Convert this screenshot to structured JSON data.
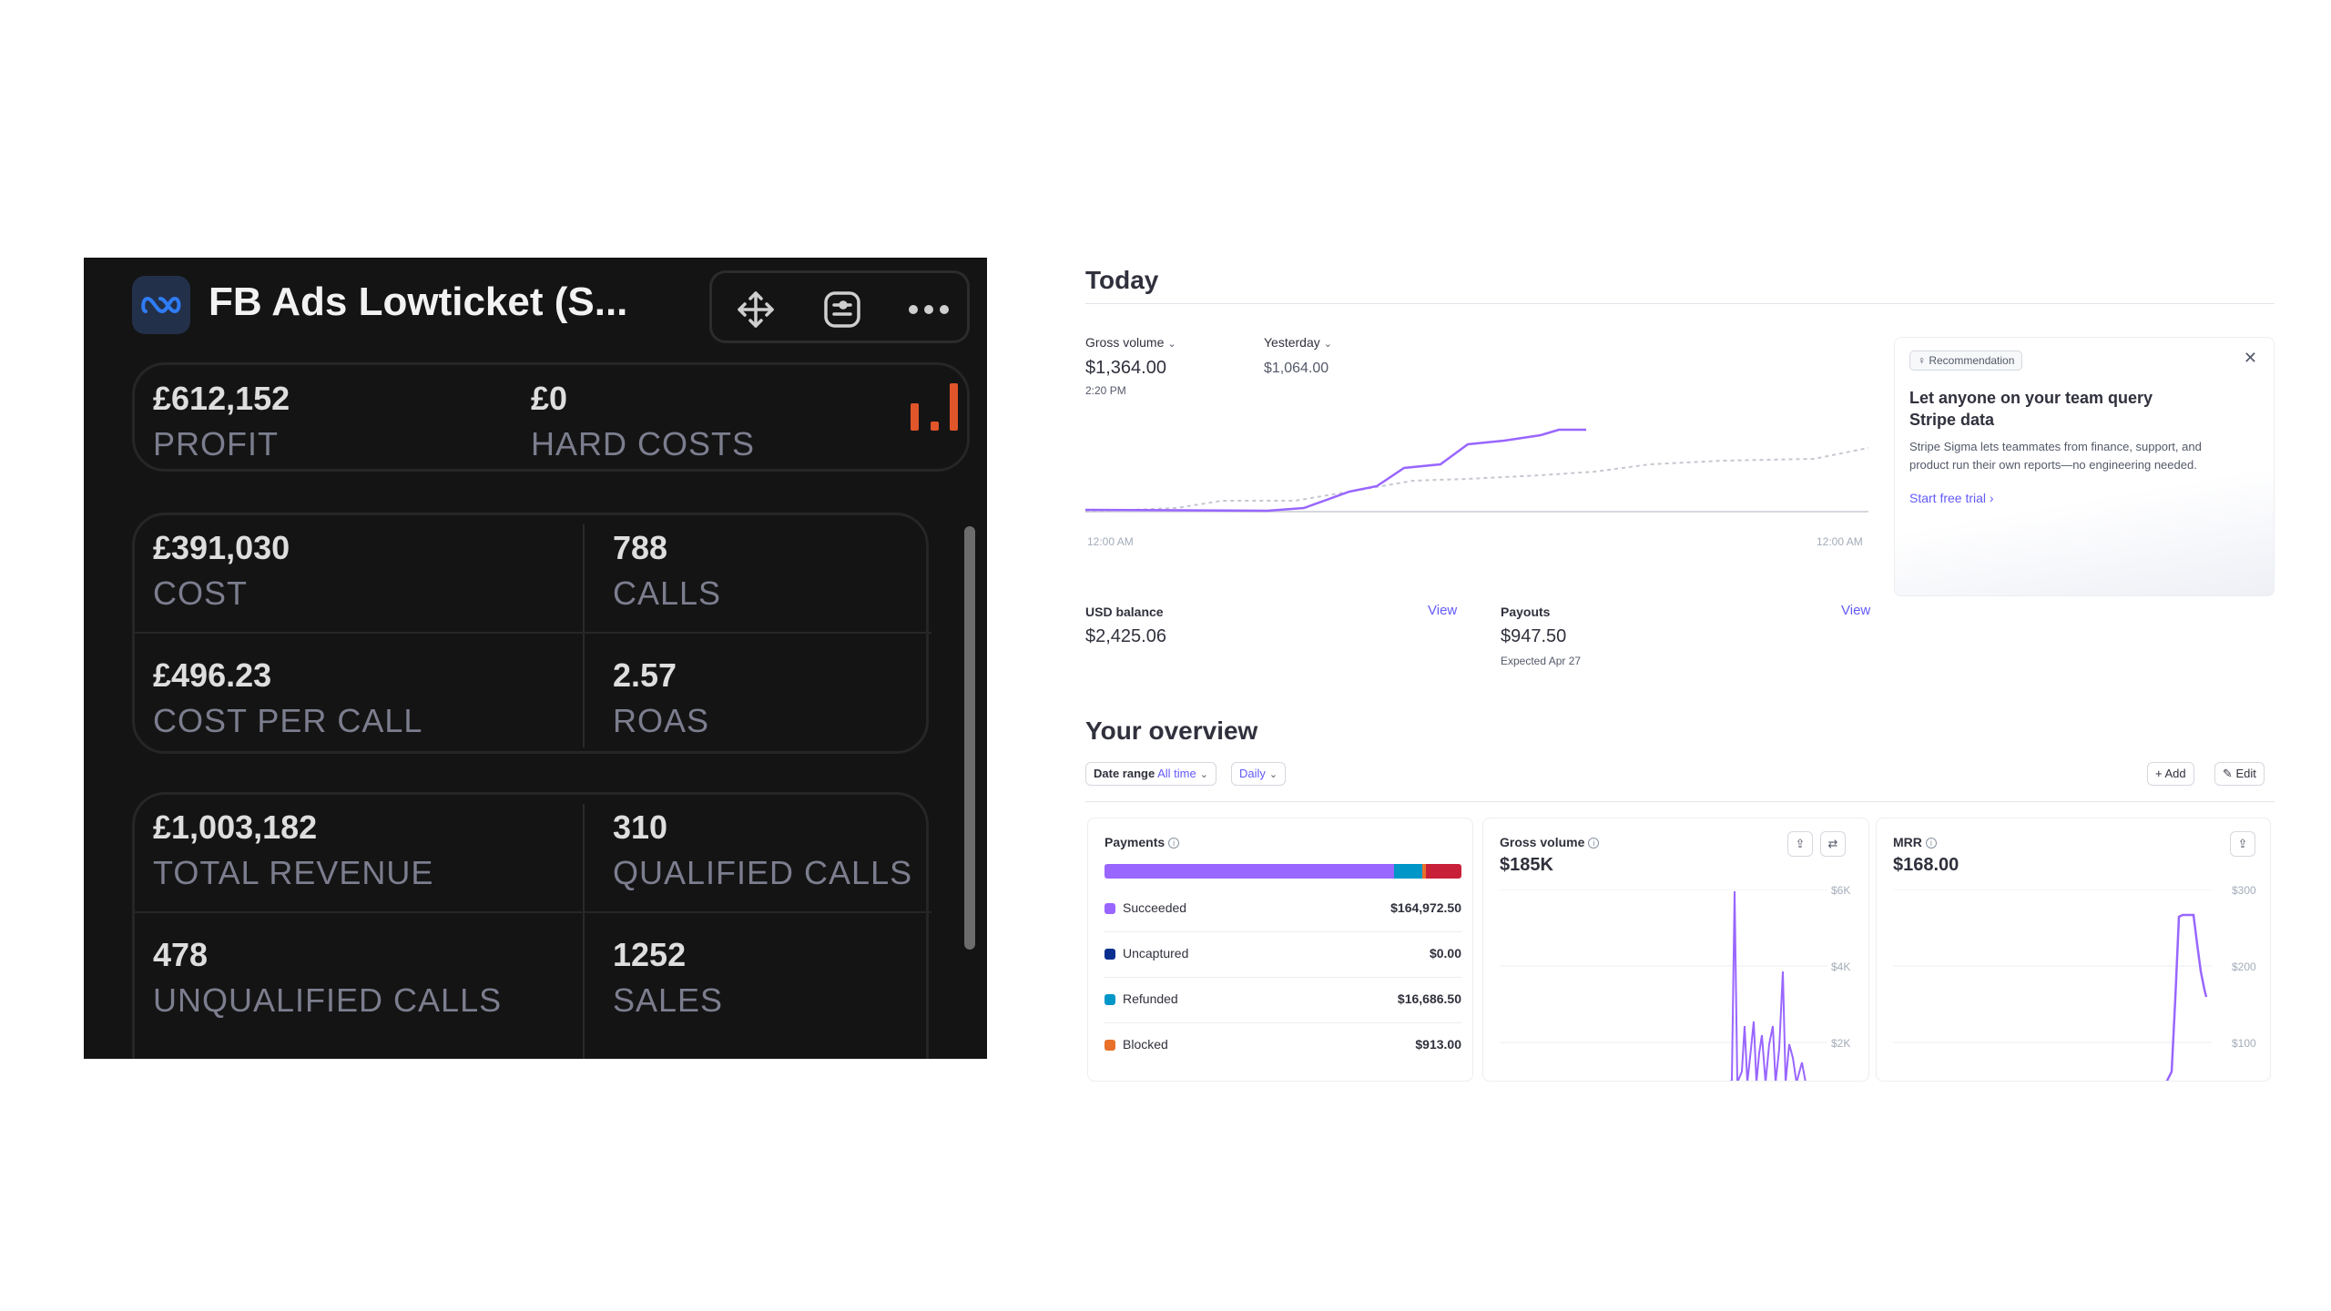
{
  "fb_widget": {
    "title": "FB Ads Lowticket (S...",
    "icons": {
      "logo": "meta-infinity-icon",
      "move": "move-arrows-icon",
      "widget": "widget-settings-icon",
      "more": "more-dots-icon",
      "chart": "mini-bar-chart-icon"
    },
    "colors": {
      "background": "#141414",
      "value": "#dedede",
      "label": "#7c7e8f",
      "accent": "#e0552a"
    },
    "profit": {
      "value": "£612,152",
      "label": "PROFIT"
    },
    "hard_costs": {
      "value": "£0",
      "label": "HARD COSTS"
    },
    "cost": {
      "value": "£391,030",
      "label": "COST"
    },
    "calls": {
      "value": "788",
      "label": "CALLS"
    },
    "cost_per_call": {
      "value": "£496.23",
      "label": "COST PER CALL"
    },
    "roas": {
      "value": "2.57",
      "label": "ROAS"
    },
    "total_revenue": {
      "value": "£1,003,182",
      "label": "TOTAL REVENUE"
    },
    "qualified_calls": {
      "value": "310",
      "label": "QUALIFIED CALLS"
    },
    "unqualified_calls": {
      "value": "478",
      "label": "UNQUALIFIED CALLS"
    },
    "sales": {
      "value": "1252",
      "label": "SALES"
    }
  },
  "stripe": {
    "colors": {
      "accent": "#625afa",
      "line": "#9966ff",
      "compare_line": "#c4c8d0"
    },
    "today": {
      "title": "Today",
      "gross_volume_label": "Gross volume",
      "gross_volume_value": "$1,364.00",
      "gross_volume_time": "2:20 PM",
      "yesterday_label": "Yesterday",
      "yesterday_value": "$1,064.00",
      "x_start": "12:00 AM",
      "x_end": "12:00 AM",
      "usd_balance_label": "USD balance",
      "usd_balance_value": "$2,425.06",
      "usd_balance_link": "View",
      "payouts_label": "Payouts",
      "payouts_value": "$947.50",
      "payouts_expected": "Expected Apr 27",
      "payouts_link": "View"
    },
    "recommendation": {
      "badge": "Recommendation",
      "title_line1": "Let anyone on your team query",
      "title_line2": "Stripe data",
      "body_line1": "Stripe Sigma lets teammates from finance, support, and",
      "body_line2": "product run their own reports—no engineering needed.",
      "cta": "Start free trial",
      "close_icon": "close-icon"
    },
    "overview": {
      "title": "Your overview",
      "date_range_label": "Date range",
      "date_range_value": "All time",
      "interval_value": "Daily",
      "add_label": "Add",
      "edit_label": "Edit"
    },
    "payments_card": {
      "title": "Payments",
      "rows": [
        {
          "label": "Succeeded",
          "amount": "$164,972.50",
          "color": "#9966ff"
        },
        {
          "label": "Uncaptured",
          "amount": "$0.00",
          "color": "#0a2f8f"
        },
        {
          "label": "Refunded",
          "amount": "$16,686.50",
          "color": "#0096c7"
        },
        {
          "label": "Blocked",
          "amount": "$913.00",
          "color": "#e8702a"
        }
      ]
    },
    "gross_volume_card": {
      "title": "Gross volume",
      "value": "$185K",
      "y_ticks": [
        "$6K",
        "$4K",
        "$2K"
      ]
    },
    "mrr_card": {
      "title": "MRR",
      "value": "$168.00",
      "y_ticks": [
        "$300",
        "$200",
        "$100"
      ]
    }
  }
}
